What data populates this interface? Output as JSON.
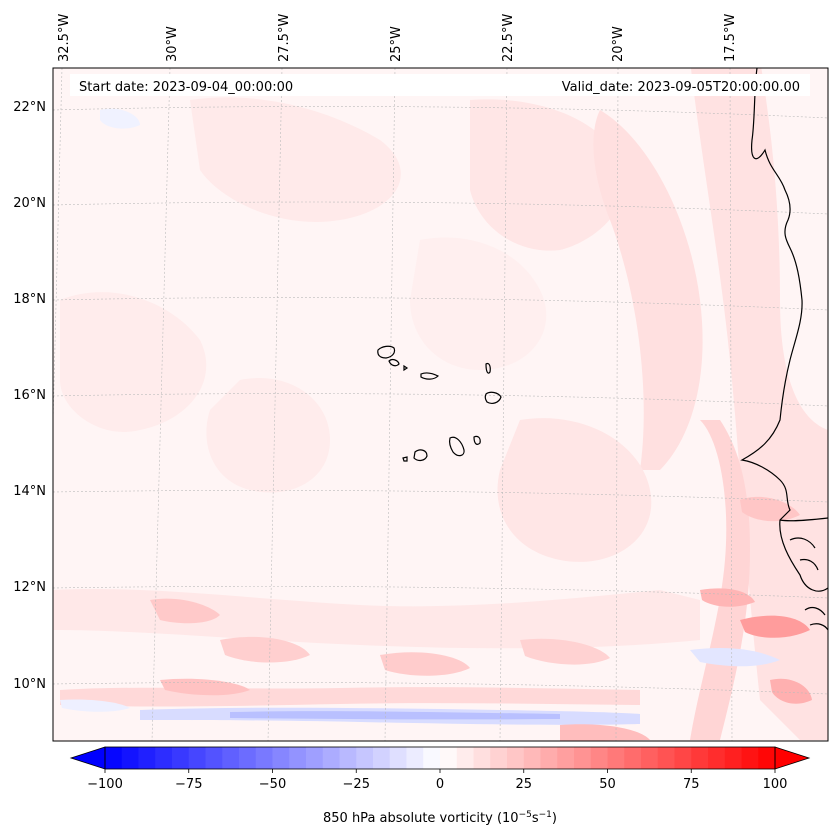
{
  "header": {
    "start_date": "Start date: 2023-09-04_00:00:00",
    "valid_date": "Valid_date: 2023-09-05T20:00:00.00"
  },
  "map": {
    "longitude_labels": [
      "32.5°W",
      "30°W",
      "27.5°W",
      "25°W",
      "22.5°W",
      "20°W",
      "17.5°W"
    ],
    "latitude_labels": [
      "22°N",
      "20°N",
      "18°N",
      "16°N",
      "14°N",
      "12°N",
      "10°N"
    ],
    "field": "850 hPa absolute vorticity"
  },
  "colorbar": {
    "label_text": "850 hPa absolute vorticity (10",
    "label_exp1": "−5",
    "label_mid": "s",
    "label_exp2": "−1",
    "label_close": ")",
    "ticks": [
      "−100",
      "−75",
      "−50",
      "−25",
      "0",
      "25",
      "50",
      "75",
      "100"
    ],
    "range": [
      -100,
      100
    ],
    "low_color": "#0000ff",
    "mid_color": "#ffffff",
    "high_color": "#ff0000"
  }
}
